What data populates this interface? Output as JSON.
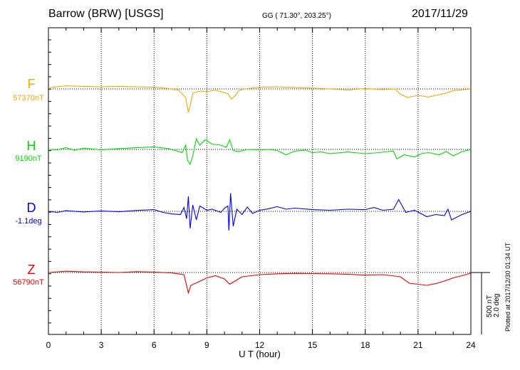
{
  "header": {
    "station": "Barrow (BRW)  [USGS]",
    "coords": "GG ( 71.30°, 203.25°)",
    "date": "2017/11/29"
  },
  "plotted_note": "Plotted at 2017/12/30 01:34 UT",
  "chart_data": {
    "type": "line",
    "xlabel": "U T (hour)",
    "xlim": [
      0,
      24
    ],
    "xticks": [
      "0",
      "3",
      "6",
      "9",
      "12",
      "15",
      "18",
      "21",
      "24"
    ],
    "grid": "dotted vertical lines every 3 hours",
    "scale_bar": {
      "line1": "500 nT",
      "line2": "2.0 deg"
    },
    "series": [
      {
        "name": "F",
        "baseline": "57370nT",
        "color": "#f5a800",
        "points": [
          [
            0,
            5
          ],
          [
            1,
            15
          ],
          [
            2,
            12
          ],
          [
            3,
            10
          ],
          [
            4,
            12
          ],
          [
            5,
            10
          ],
          [
            6,
            8
          ],
          [
            6.7,
            3
          ],
          [
            7.4,
            -5
          ],
          [
            7.8,
            -40
          ],
          [
            7.95,
            -110
          ],
          [
            8.05,
            -80
          ],
          [
            8.2,
            -20
          ],
          [
            8.6,
            -10
          ],
          [
            9,
            -12
          ],
          [
            9.5,
            -6
          ],
          [
            10.2,
            -22
          ],
          [
            10.4,
            -48
          ],
          [
            10.6,
            -32
          ],
          [
            10.8,
            -10
          ],
          [
            11,
            -2
          ],
          [
            12,
            8
          ],
          [
            13,
            10
          ],
          [
            14,
            6
          ],
          [
            15,
            4
          ],
          [
            16,
            0
          ],
          [
            17,
            -5
          ],
          [
            18,
            2
          ],
          [
            19,
            -3
          ],
          [
            19.7,
            0
          ],
          [
            20,
            -25
          ],
          [
            20.4,
            -40
          ],
          [
            21,
            -30
          ],
          [
            21.6,
            -38
          ],
          [
            22,
            -30
          ],
          [
            22.5,
            -22
          ],
          [
            23,
            -8
          ],
          [
            24,
            0
          ]
        ]
      },
      {
        "name": "H",
        "baseline": "9190nT",
        "color": "#00dd00",
        "points": [
          [
            0,
            0
          ],
          [
            0.5,
            -2
          ],
          [
            1,
            8
          ],
          [
            1.5,
            -4
          ],
          [
            2,
            6
          ],
          [
            3,
            -2
          ],
          [
            4,
            4
          ],
          [
            5,
            8
          ],
          [
            6,
            12
          ],
          [
            6.8,
            4
          ],
          [
            7.2,
            -5
          ],
          [
            7.6,
            -15
          ],
          [
            7.8,
            20
          ],
          [
            7.9,
            -50
          ],
          [
            8.05,
            -70
          ],
          [
            8.2,
            -30
          ],
          [
            8.4,
            50
          ],
          [
            8.6,
            20
          ],
          [
            8.9,
            45
          ],
          [
            9.3,
            25
          ],
          [
            9.8,
            20
          ],
          [
            10.1,
            10
          ],
          [
            10.3,
            45
          ],
          [
            10.5,
            -5
          ],
          [
            10.8,
            -10
          ],
          [
            11.3,
            0
          ],
          [
            12,
            -2
          ],
          [
            12.5,
            0
          ],
          [
            13,
            -5
          ],
          [
            13.5,
            -25
          ],
          [
            14,
            -8
          ],
          [
            14.6,
            -3
          ],
          [
            15,
            -15
          ],
          [
            15.5,
            -12
          ],
          [
            16,
            -20
          ],
          [
            17,
            -12
          ],
          [
            18,
            -20
          ],
          [
            18.8,
            -15
          ],
          [
            19.2,
            -10
          ],
          [
            19.6,
            -8
          ],
          [
            19.8,
            -45
          ],
          [
            20.2,
            -25
          ],
          [
            20.8,
            -35
          ],
          [
            21.2,
            -20
          ],
          [
            21.6,
            -15
          ],
          [
            22.2,
            -25
          ],
          [
            22.6,
            -10
          ],
          [
            23,
            -30
          ],
          [
            23.5,
            -10
          ],
          [
            24,
            0
          ]
        ]
      },
      {
        "name": "D",
        "baseline": "-1.1deg",
        "color": "#0000ee",
        "points": [
          [
            0,
            0
          ],
          [
            0.5,
            -5
          ],
          [
            1,
            3
          ],
          [
            2,
            -3
          ],
          [
            3,
            2
          ],
          [
            4,
            -2
          ],
          [
            5,
            4
          ],
          [
            6,
            8
          ],
          [
            6.5,
            -5
          ],
          [
            7,
            -12
          ],
          [
            7.5,
            -15
          ],
          [
            7.7,
            18
          ],
          [
            7.85,
            -35
          ],
          [
            7.95,
            70
          ],
          [
            8.05,
            -80
          ],
          [
            8.2,
            30
          ],
          [
            8.4,
            -40
          ],
          [
            8.6,
            25
          ],
          [
            9,
            5
          ],
          [
            9.3,
            10
          ],
          [
            9.8,
            -5
          ],
          [
            10,
            15
          ],
          [
            10.2,
            25
          ],
          [
            10.25,
            -90
          ],
          [
            10.35,
            85
          ],
          [
            10.5,
            -70
          ],
          [
            10.7,
            10
          ],
          [
            11,
            -15
          ],
          [
            11.3,
            20
          ],
          [
            11.6,
            -10
          ],
          [
            12,
            5
          ],
          [
            12.5,
            12
          ],
          [
            13,
            22
          ],
          [
            13.5,
            10
          ],
          [
            14,
            15
          ],
          [
            15,
            8
          ],
          [
            16,
            5
          ],
          [
            17,
            10
          ],
          [
            18,
            8
          ],
          [
            18.5,
            18
          ],
          [
            19,
            5
          ],
          [
            19.6,
            10
          ],
          [
            19.9,
            55
          ],
          [
            20.3,
            -5
          ],
          [
            20.8,
            5
          ],
          [
            21.5,
            -25
          ],
          [
            22,
            -15
          ],
          [
            22.5,
            -20
          ],
          [
            22.7,
            10
          ],
          [
            22.9,
            -40
          ],
          [
            23.5,
            -15
          ],
          [
            24,
            0
          ]
        ]
      },
      {
        "name": "Z",
        "baseline": "56790nT",
        "color": "#ee0000",
        "points": [
          [
            0,
            0
          ],
          [
            1,
            6
          ],
          [
            2,
            3
          ],
          [
            3,
            2
          ],
          [
            4,
            0
          ],
          [
            5,
            4
          ],
          [
            6,
            2
          ],
          [
            7,
            -2
          ],
          [
            7.7,
            -10
          ],
          [
            7.95,
            -95
          ],
          [
            8.1,
            -60
          ],
          [
            8.5,
            -45
          ],
          [
            9,
            -25
          ],
          [
            9.5,
            -15
          ],
          [
            10,
            -30
          ],
          [
            10.3,
            -55
          ],
          [
            10.6,
            -40
          ],
          [
            11,
            -20
          ],
          [
            12,
            -10
          ],
          [
            13,
            -6
          ],
          [
            14,
            -4
          ],
          [
            15,
            -5
          ],
          [
            16,
            -6
          ],
          [
            17,
            -8
          ],
          [
            18,
            -12
          ],
          [
            19,
            -10
          ],
          [
            20,
            -20
          ],
          [
            20.5,
            -50
          ],
          [
            21,
            -55
          ],
          [
            21.5,
            -60
          ],
          [
            22,
            -52
          ],
          [
            22.5,
            -40
          ],
          [
            23,
            -25
          ],
          [
            23.5,
            -15
          ],
          [
            24,
            -3
          ]
        ]
      }
    ]
  }
}
